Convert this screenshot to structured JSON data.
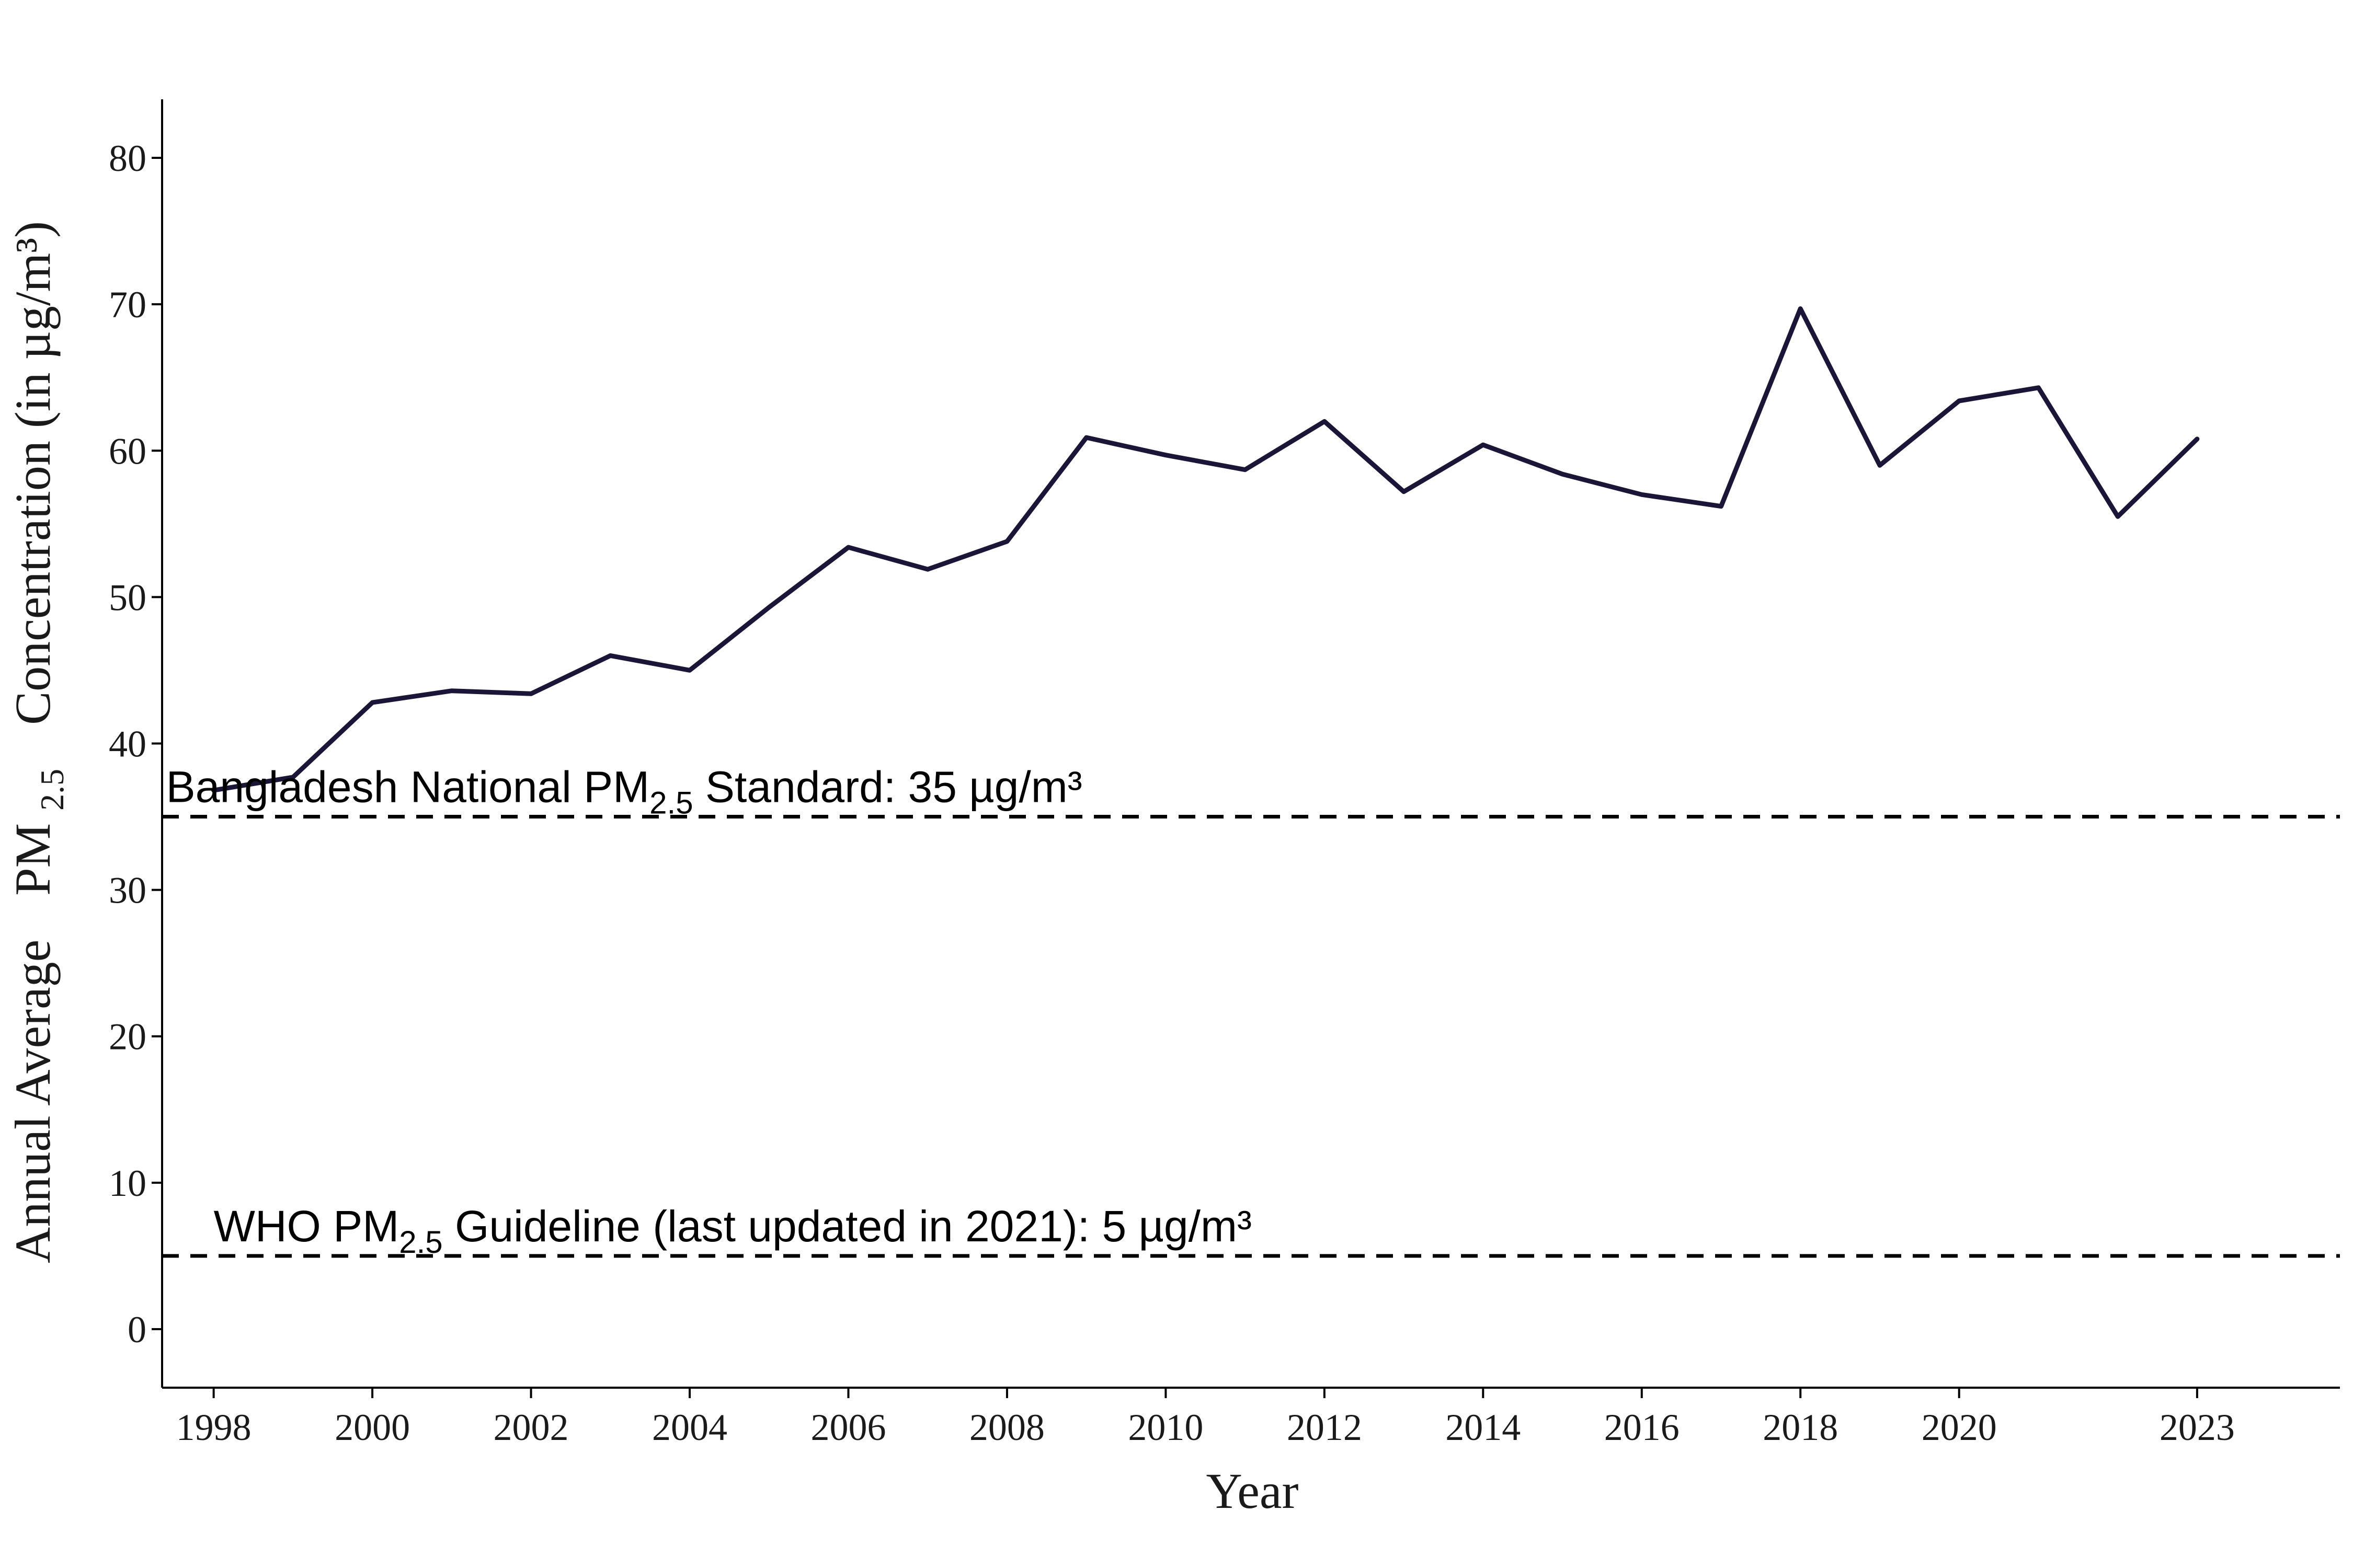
{
  "chart_data": {
    "type": "line",
    "title": "",
    "xlabel": "Year",
    "ylabel": {
      "prefix": "Annual Average",
      "pm": "PM",
      "pm_sub": "2.5",
      "suffix": "Concentration (in µg/m³)"
    },
    "xlim": [
      1997.35,
      2024.8
    ],
    "ylim": [
      -4,
      84
    ],
    "x_ticks": [
      1998,
      2000,
      2002,
      2004,
      2006,
      2008,
      2010,
      2012,
      2014,
      2016,
      2018,
      2020,
      2023
    ],
    "y_ticks": [
      0,
      10,
      20,
      30,
      40,
      50,
      60,
      70,
      80
    ],
    "grid": false,
    "series": [
      {
        "color": "#1b1537",
        "x": [
          1998,
          1999,
          2000,
          2001,
          2002,
          2003,
          2004,
          2005,
          2006,
          2007,
          2008,
          2009,
          2010,
          2011,
          2012,
          2013,
          2014,
          2015,
          2016,
          2017,
          2018,
          2019,
          2020,
          2021,
          2022,
          2023
        ],
        "y": [
          36.8,
          37.7,
          42.8,
          43.6,
          43.4,
          46.0,
          45.0,
          49.3,
          53.4,
          51.9,
          53.8,
          60.9,
          59.7,
          58.7,
          62.0,
          57.2,
          60.4,
          58.4,
          57.0,
          56.2,
          69.7,
          59.0,
          63.4,
          64.3,
          55.5,
          60.8
        ]
      }
    ],
    "reference_lines": [
      {
        "y": 35,
        "label_pre": "Bangladesh National PM",
        "label_sub": "2.5",
        "label_post": " Standard: 35 µg/m³",
        "label_x": 1997.4
      },
      {
        "y": 5,
        "label_pre": "WHO  PM",
        "label_sub": "2.5",
        "label_post": "  Guideline (last updated in 2021): 5 µg/m³",
        "label_x": 1998.0
      }
    ]
  }
}
